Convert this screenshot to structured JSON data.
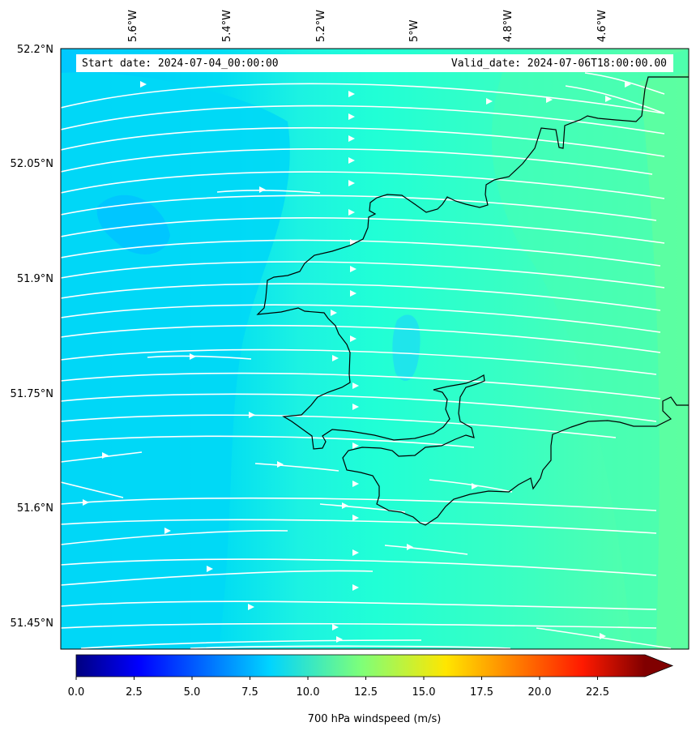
{
  "header": {
    "start_date": "Start date: 2024-07-04_00:00:00",
    "valid_date": "Valid_date: 2024-07-06T18:00:00.00"
  },
  "axes": {
    "lon_ticks": [
      "5.6°W",
      "5.4°W",
      "5.2°W",
      "5°W",
      "4.8°W",
      "4.6°W"
    ],
    "lat_ticks": [
      "52.2°N",
      "52.05°N",
      "51.9°N",
      "51.75°N",
      "51.6°N",
      "51.45°N"
    ]
  },
  "colorbar": {
    "label": "700 hPa windspeed (m/s)",
    "ticks": [
      "0.0",
      "2.5",
      "5.0",
      "7.5",
      "10.0",
      "12.5",
      "15.0",
      "17.5",
      "20.0",
      "22.5"
    ],
    "min": 0,
    "max": 25,
    "colormap": "jet",
    "extend": "max"
  },
  "map": {
    "field": "700 hPa windspeed",
    "units": "m/s",
    "value_range": [
      7,
      11
    ],
    "streamline_color": "#ffffff",
    "coastline_color": "#000000"
  }
}
